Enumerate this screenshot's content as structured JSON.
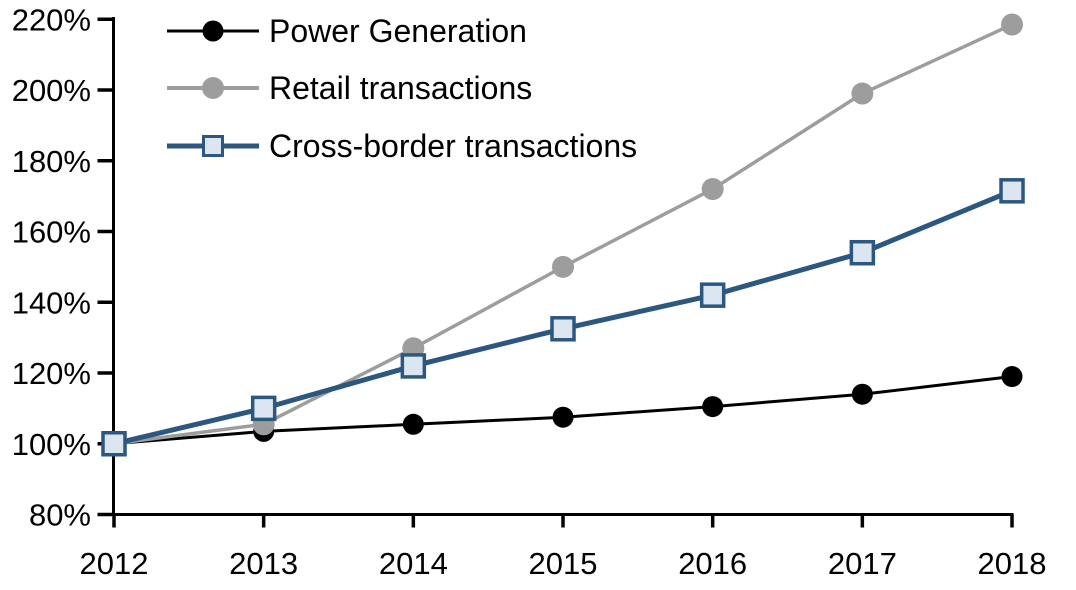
{
  "chart_data": {
    "type": "line",
    "title": "",
    "xlabel": "",
    "ylabel": "",
    "grid": false,
    "background": "#ffffff",
    "legend_position": "top-left-inside",
    "x": [
      2012,
      2013,
      2014,
      2015,
      2016,
      2017,
      2018
    ],
    "x_tick_labels": [
      "2012",
      "2013",
      "2014",
      "2015",
      "2016",
      "2017",
      "2018"
    ],
    "y_axis": {
      "min": 80,
      "max": 220,
      "step": 20,
      "unit": "percent",
      "tick_values": [
        80,
        100,
        120,
        140,
        160,
        180,
        200,
        220
      ],
      "tick_labels": [
        "80%",
        "100%",
        "120%",
        "140%",
        "160%",
        "180%",
        "200%",
        "220%"
      ]
    },
    "axis_color": "#000000",
    "series": [
      {
        "name": "Power Generation",
        "values": [
          100,
          103.5,
          105.5,
          107.5,
          110.5,
          114,
          119
        ],
        "color": "#000000",
        "line_width": 3,
        "marker": "circle",
        "marker_fill": "#000000",
        "marker_size": 21
      },
      {
        "name": "Retail transactions",
        "values": [
          100,
          105.5,
          127,
          150,
          172,
          199,
          218.5
        ],
        "color": "#9d9d9d",
        "line_width": 3.5,
        "marker": "circle",
        "marker_fill": "#9d9d9d",
        "marker_size": 22
      },
      {
        "name": "Cross-border transactions",
        "values": [
          100,
          110,
          122,
          132.5,
          142,
          154,
          171.5
        ],
        "color": "#2b5781",
        "line_width": 5,
        "marker": "square",
        "marker_fill": "#dce6f1",
        "marker_size": 22
      }
    ]
  }
}
